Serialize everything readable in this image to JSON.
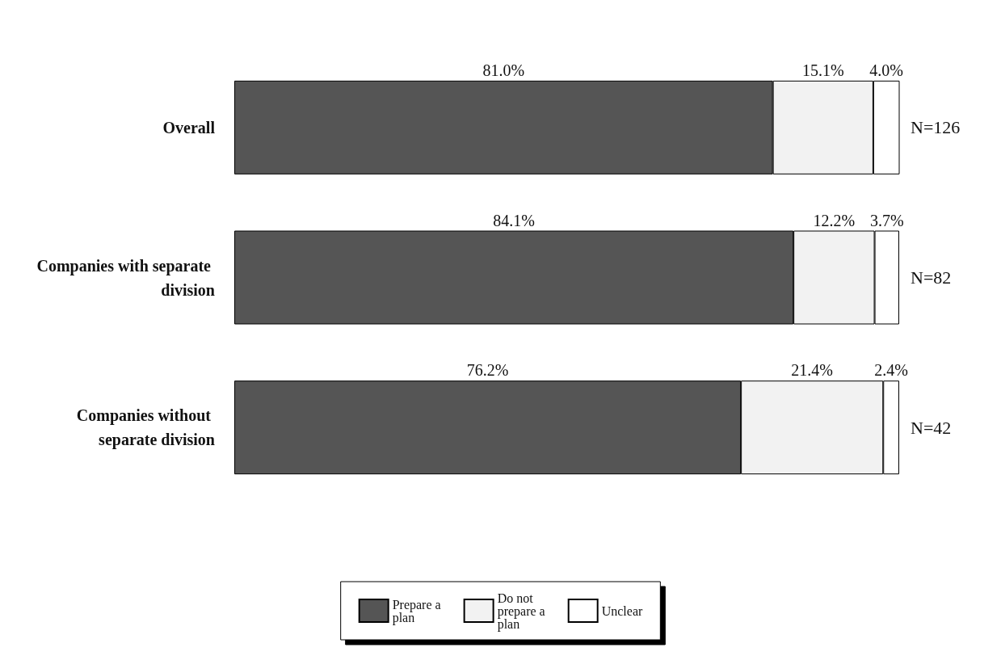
{
  "chart_data": {
    "type": "bar",
    "orientation": "horizontal",
    "stacked": true,
    "categories": [
      "Overall",
      "Companies with separate division",
      "Companies without separate division"
    ],
    "series": [
      {
        "name": "Prepare a plan",
        "color": "#555555",
        "values": [
          81.0,
          84.1,
          76.2
        ],
        "value_labels": [
          "81.0%",
          "84.1%",
          "76.2%"
        ]
      },
      {
        "name": "Do not prepare a plan",
        "color": "#f2f2f2",
        "values": [
          15.1,
          12.2,
          21.4
        ],
        "value_labels": [
          "15.1%",
          "12.2%",
          "21.4%"
        ]
      },
      {
        "name": "Unclear",
        "color": "#ffffff",
        "values": [
          4.0,
          3.7,
          2.4
        ],
        "value_labels": [
          "4.0%",
          "3.7%",
          "2.4%"
        ]
      }
    ],
    "xlim": [
      0,
      100
    ],
    "tick_labels": "y",
    "legend": "bottom",
    "annotations": [
      "N=126",
      "N=82",
      "N=42"
    ]
  }
}
